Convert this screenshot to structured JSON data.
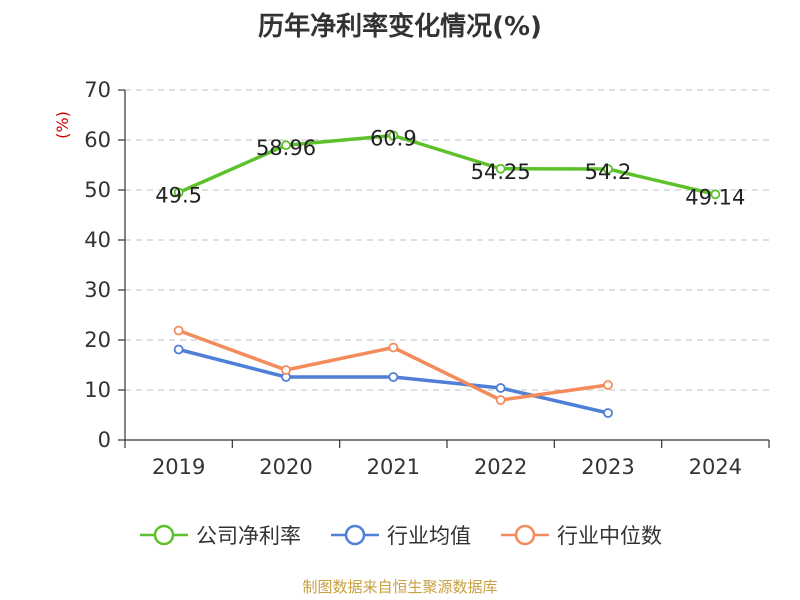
{
  "source_note": "制图数据来自恒生聚源数据库",
  "colors": {
    "source_text": "#c8a040",
    "unit_text": "#cc0000",
    "grid": "#cccccc",
    "axis": "#333333"
  },
  "chart_data": {
    "type": "line",
    "title": "历年净利率变化情况(%)",
    "ylabel": "(%)",
    "ylim": [
      0,
      70
    ],
    "yticks": [
      0,
      10,
      20,
      30,
      40,
      50,
      60,
      70
    ],
    "categories": [
      "2019",
      "2020",
      "2021",
      "2022",
      "2023",
      "2024"
    ],
    "grid": true,
    "legend_position": "bottom",
    "series": [
      {
        "name": "公司净利率",
        "color": "#5dc12b",
        "values": [
          49.5,
          58.96,
          60.9,
          54.25,
          54.2,
          49.14
        ],
        "data_labels": true
      },
      {
        "name": "行业均值",
        "color": "#4f7fd6",
        "values": [
          18.1,
          12.6,
          12.6,
          10.4,
          5.4,
          null
        ],
        "data_labels": false
      },
      {
        "name": "行业中位数",
        "color": "#f48b5a",
        "values": [
          21.9,
          14.0,
          18.5,
          8.0,
          11.0,
          null
        ],
        "data_labels": false
      }
    ]
  }
}
